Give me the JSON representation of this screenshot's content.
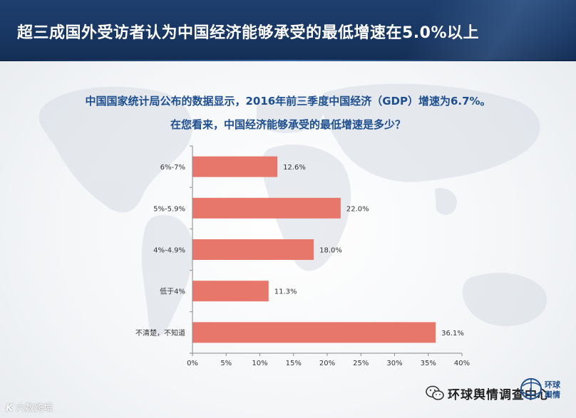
{
  "header": {
    "title": "超三成国外受访者认为中国经济能够承受的最低增速在5.0%以上"
  },
  "subtitle_lines": [
    "中国国家统计局公布的数据显示，2016年前三季度中国经济（GDP）增速为6.7%。",
    "在您看来，中国经济能够承受的最低增速是多少？"
  ],
  "chart_data": {
    "type": "bar",
    "orientation": "horizontal",
    "categories": [
      "6%-7%",
      "5%-5.9%",
      "4%-4.9%",
      "低于4%",
      "不清楚，不知道"
    ],
    "values": [
      12.6,
      22.0,
      18.0,
      11.3,
      36.1
    ],
    "value_labels": [
      "12.6%",
      "22.0%",
      "18.0%",
      "11.3%",
      "36.1%"
    ],
    "xlim": [
      0,
      40
    ],
    "x_ticks": [
      0,
      5,
      10,
      15,
      20,
      25,
      30,
      35,
      40
    ],
    "x_tick_labels": [
      "0%",
      "5%",
      "10%",
      "15%",
      "20%",
      "25%",
      "30%",
      "35%",
      "40%"
    ],
    "bar_color": "#e8776b",
    "grid": false,
    "legend": "none"
  },
  "footer": {
    "left_logo_text": "六数跨境",
    "left_logo_mark": "K"
  },
  "watermark": {
    "text": "环球舆情调查中心"
  },
  "brand": {
    "name": "环球舆情",
    "color": "#1f4f8f"
  }
}
